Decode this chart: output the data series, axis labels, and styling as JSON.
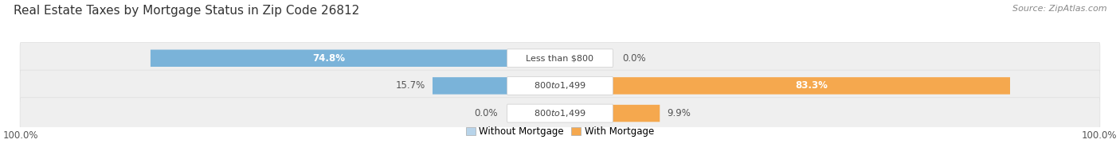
{
  "title": "Real Estate Taxes by Mortgage Status in Zip Code 26812",
  "source": "Source: ZipAtlas.com",
  "rows": [
    {
      "without_mortgage_pct": 74.8,
      "with_mortgage_pct": 0.0,
      "label": "Less than $800"
    },
    {
      "without_mortgage_pct": 15.7,
      "with_mortgage_pct": 83.3,
      "label": "$800 to $1,499"
    },
    {
      "without_mortgage_pct": 0.0,
      "with_mortgage_pct": 9.9,
      "label": "$800 to $1,499"
    }
  ],
  "without_mortgage_color": "#7ab3d9",
  "with_mortgage_color": "#f5a84e",
  "without_mortgage_color_light": "#b8d4ea",
  "with_mortgage_color_light": "#f9cfa0",
  "row_bg_color": "#efefef",
  "legend_without": "Without Mortgage",
  "legend_with": "With Mortgage",
  "bar_height": 0.6,
  "title_fontsize": 11,
  "label_fontsize": 8.5,
  "tick_fontsize": 8.5,
  "source_fontsize": 8
}
